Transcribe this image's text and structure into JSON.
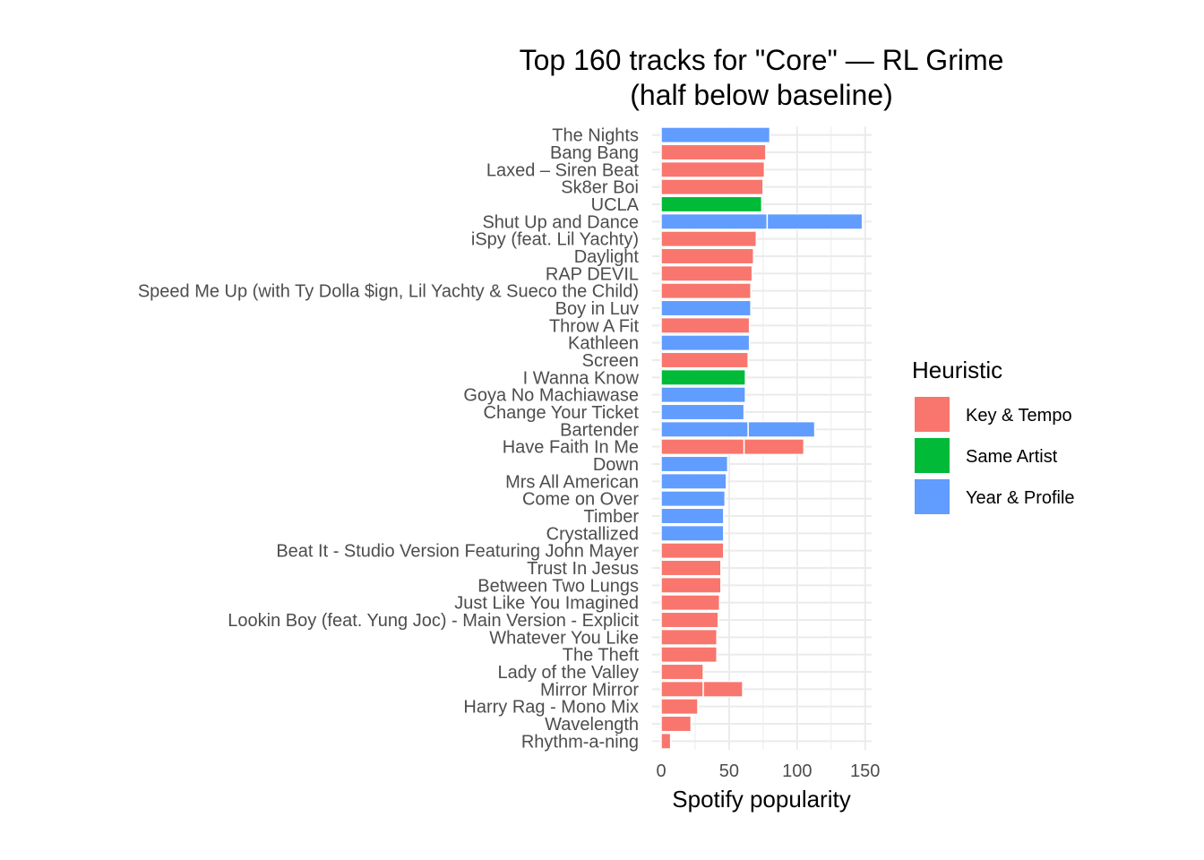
{
  "chart_data": {
    "type": "bar",
    "orientation": "horizontal",
    "stacked": true,
    "title": "Top 160 tracks for \"Core\" — RL Grime",
    "subtitle": "(half below baseline)",
    "xlabel": "Spotify popularity",
    "ylabel": "",
    "xlim": [
      0,
      155
    ],
    "xticks": [
      0,
      50,
      100,
      150
    ],
    "grid": true,
    "legend": {
      "title": "Heuristic",
      "placement": "right",
      "entries": [
        {
          "name": "Key & Tempo",
          "color": "#F8766D"
        },
        {
          "name": "Same Artist",
          "color": "#00BA38"
        },
        {
          "name": "Year & Profile",
          "color": "#619CFF"
        }
      ]
    },
    "bars": [
      {
        "label": "The Nights",
        "segments": [
          {
            "heuristic": "Year & Profile",
            "value": 80
          }
        ]
      },
      {
        "label": "Bang Bang",
        "segments": [
          {
            "heuristic": "Key & Tempo",
            "value": 77
          }
        ]
      },
      {
        "label": "Laxed – Siren Beat",
        "segments": [
          {
            "heuristic": "Key & Tempo",
            "value": 76
          }
        ]
      },
      {
        "label": "Sk8er Boi",
        "segments": [
          {
            "heuristic": "Key & Tempo",
            "value": 75
          }
        ]
      },
      {
        "label": "UCLA",
        "segments": [
          {
            "heuristic": "Same Artist",
            "value": 74
          }
        ]
      },
      {
        "label": "Shut Up and Dance",
        "segments": [
          {
            "heuristic": "Year & Profile",
            "value": 78
          },
          {
            "heuristic": "Year & Profile",
            "value": 70
          }
        ]
      },
      {
        "label": "iSpy (feat. Lil Yachty)",
        "segments": [
          {
            "heuristic": "Key & Tempo",
            "value": 70
          }
        ]
      },
      {
        "label": "Daylight",
        "segments": [
          {
            "heuristic": "Key & Tempo",
            "value": 68
          }
        ]
      },
      {
        "label": "RAP DEVIL",
        "segments": [
          {
            "heuristic": "Key & Tempo",
            "value": 67
          }
        ]
      },
      {
        "label": "Speed Me Up (with Ty Dolla $ign, Lil Yachty & Sueco the Child)",
        "segments": [
          {
            "heuristic": "Key & Tempo",
            "value": 66
          }
        ]
      },
      {
        "label": "Boy in Luv",
        "segments": [
          {
            "heuristic": "Year & Profile",
            "value": 66
          }
        ]
      },
      {
        "label": "Throw A Fit",
        "segments": [
          {
            "heuristic": "Key & Tempo",
            "value": 65
          }
        ]
      },
      {
        "label": "Kathleen",
        "segments": [
          {
            "heuristic": "Year & Profile",
            "value": 65
          }
        ]
      },
      {
        "label": "Screen",
        "segments": [
          {
            "heuristic": "Key & Tempo",
            "value": 64
          }
        ]
      },
      {
        "label": "I Wanna Know",
        "segments": [
          {
            "heuristic": "Same Artist",
            "value": 62
          }
        ]
      },
      {
        "label": "Goya No Machiawase",
        "segments": [
          {
            "heuristic": "Year & Profile",
            "value": 62
          }
        ]
      },
      {
        "label": "Change Your Ticket",
        "segments": [
          {
            "heuristic": "Year & Profile",
            "value": 61
          }
        ]
      },
      {
        "label": "Bartender",
        "segments": [
          {
            "heuristic": "Year & Profile",
            "value": 64
          },
          {
            "heuristic": "Year & Profile",
            "value": 49
          }
        ]
      },
      {
        "label": "Have Faith In Me",
        "segments": [
          {
            "heuristic": "Key & Tempo",
            "value": 61
          },
          {
            "heuristic": "Key & Tempo",
            "value": 44
          }
        ]
      },
      {
        "label": "Down",
        "segments": [
          {
            "heuristic": "Year & Profile",
            "value": 49
          }
        ]
      },
      {
        "label": "Mrs All American",
        "segments": [
          {
            "heuristic": "Year & Profile",
            "value": 48
          }
        ]
      },
      {
        "label": "Come on Over",
        "segments": [
          {
            "heuristic": "Year & Profile",
            "value": 47
          }
        ]
      },
      {
        "label": "Timber",
        "segments": [
          {
            "heuristic": "Year & Profile",
            "value": 46
          }
        ]
      },
      {
        "label": "Crystallized",
        "segments": [
          {
            "heuristic": "Year & Profile",
            "value": 46
          }
        ]
      },
      {
        "label": "Beat It - Studio Version Featuring John Mayer",
        "segments": [
          {
            "heuristic": "Key & Tempo",
            "value": 46
          }
        ]
      },
      {
        "label": "Trust In Jesus",
        "segments": [
          {
            "heuristic": "Key & Tempo",
            "value": 44
          }
        ]
      },
      {
        "label": "Between Two Lungs",
        "segments": [
          {
            "heuristic": "Key & Tempo",
            "value": 44
          }
        ]
      },
      {
        "label": "Just Like You Imagined",
        "segments": [
          {
            "heuristic": "Key & Tempo",
            "value": 43
          }
        ]
      },
      {
        "label": "Lookin Boy (feat. Yung Joc) - Main Version - Explicit",
        "segments": [
          {
            "heuristic": "Key & Tempo",
            "value": 42
          }
        ]
      },
      {
        "label": "Whatever You Like",
        "segments": [
          {
            "heuristic": "Key & Tempo",
            "value": 41
          }
        ]
      },
      {
        "label": "The Theft",
        "segments": [
          {
            "heuristic": "Key & Tempo",
            "value": 41
          }
        ]
      },
      {
        "label": "Lady of the Valley",
        "segments": [
          {
            "heuristic": "Key & Tempo",
            "value": 31
          }
        ]
      },
      {
        "label": "Mirror Mirror",
        "segments": [
          {
            "heuristic": "Key & Tempo",
            "value": 31
          },
          {
            "heuristic": "Key & Tempo",
            "value": 29
          }
        ]
      },
      {
        "label": "Harry Rag - Mono Mix",
        "segments": [
          {
            "heuristic": "Key & Tempo",
            "value": 27
          }
        ]
      },
      {
        "label": "Wavelength",
        "segments": [
          {
            "heuristic": "Key & Tempo",
            "value": 22
          }
        ]
      },
      {
        "label": "Rhythm-a-ning",
        "segments": [
          {
            "heuristic": "Key & Tempo",
            "value": 7
          }
        ]
      }
    ]
  }
}
